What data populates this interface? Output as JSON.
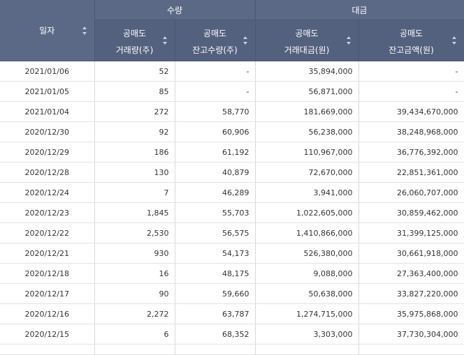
{
  "headers": {
    "date": "일자",
    "group_volume": "수량",
    "group_amount": "대금",
    "col1_line1": "공매도",
    "col1_line2": "거래량(주)",
    "col2_line1": "공매도",
    "col2_line2": "잔고수량(주)",
    "col3_line1": "공매도",
    "col3_line2": "거래대금(원)",
    "col4_line1": "공매도",
    "col4_line2": "잔고금액(원)"
  },
  "rows": [
    {
      "date": "2021/01/06",
      "volume": "52",
      "balance": "-",
      "amount": "35,894,000",
      "balance_amount": "-"
    },
    {
      "date": "2021/01/05",
      "volume": "85",
      "balance": "-",
      "amount": "56,871,000",
      "balance_amount": "-"
    },
    {
      "date": "2021/01/04",
      "volume": "272",
      "balance": "58,770",
      "amount": "181,669,000",
      "balance_amount": "39,434,670,000"
    },
    {
      "date": "2020/12/30",
      "volume": "92",
      "balance": "60,906",
      "amount": "56,238,000",
      "balance_amount": "38,248,968,000"
    },
    {
      "date": "2020/12/29",
      "volume": "186",
      "balance": "61,192",
      "amount": "110,967,000",
      "balance_amount": "36,776,392,000"
    },
    {
      "date": "2020/12/28",
      "volume": "130",
      "balance": "40,879",
      "amount": "72,670,000",
      "balance_amount": "22,851,361,000"
    },
    {
      "date": "2020/12/24",
      "volume": "7",
      "balance": "46,289",
      "amount": "3,941,000",
      "balance_amount": "26,060,707,000"
    },
    {
      "date": "2020/12/23",
      "volume": "1,845",
      "balance": "55,703",
      "amount": "1,022,605,000",
      "balance_amount": "30,859,462,000"
    },
    {
      "date": "2020/12/22",
      "volume": "2,530",
      "balance": "56,575",
      "amount": "1,410,866,000",
      "balance_amount": "31,399,125,000"
    },
    {
      "date": "2020/12/21",
      "volume": "930",
      "balance": "54,173",
      "amount": "526,380,000",
      "balance_amount": "30,661,918,000"
    },
    {
      "date": "2020/12/18",
      "volume": "16",
      "balance": "48,175",
      "amount": "9,088,000",
      "balance_amount": "27,363,400,000"
    },
    {
      "date": "2020/12/17",
      "volume": "90",
      "balance": "59,660",
      "amount": "50,638,000",
      "balance_amount": "33,827,220,000"
    },
    {
      "date": "2020/12/16",
      "volume": "2,272",
      "balance": "63,787",
      "amount": "1,274,715,000",
      "balance_amount": "35,975,868,000"
    },
    {
      "date": "2020/12/15",
      "volume": "6",
      "balance": "68,352",
      "amount": "3,303,000",
      "balance_amount": "37,730,304,000"
    }
  ]
}
